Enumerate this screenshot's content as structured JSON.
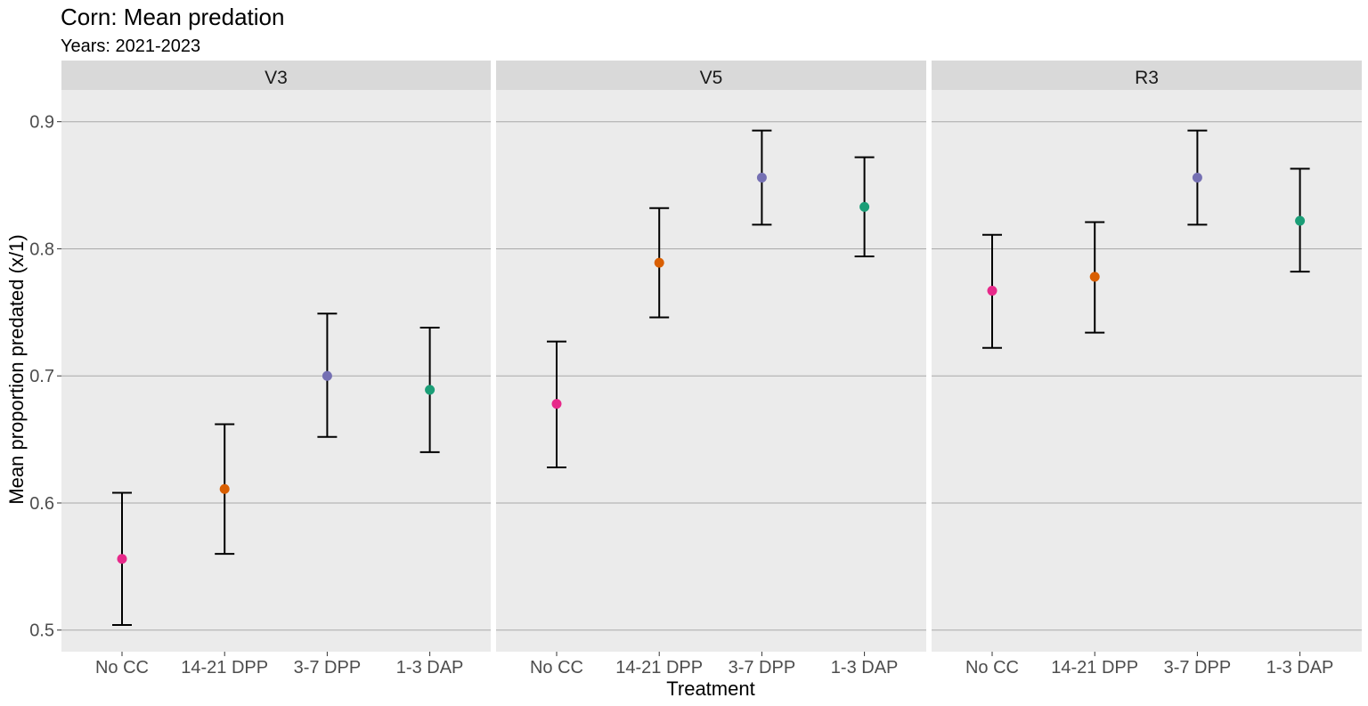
{
  "chart_data": {
    "type": "scatter",
    "title": "Corn: Mean predation",
    "subtitle": "Years: 2021-2023",
    "xlabel": "Treatment",
    "ylabel": "Mean proportion predated (x/1)",
    "ylim": [
      0.483,
      0.925
    ],
    "yticks": [
      "0.5",
      "0.6",
      "0.7",
      "0.8",
      "0.9"
    ],
    "categories": [
      "No CC",
      "14-21 DPP",
      "3-7 DPP",
      "1-3 DAP"
    ],
    "colors": [
      "#e7298a",
      "#d95f02",
      "#7570b3",
      "#1b9e77"
    ],
    "grid": true,
    "legend": "none",
    "panels": [
      {
        "name": "V3",
        "mean": [
          0.556,
          0.611,
          0.7,
          0.689
        ],
        "lower": [
          0.504,
          0.56,
          0.652,
          0.64
        ],
        "upper": [
          0.608,
          0.662,
          0.749,
          0.738
        ]
      },
      {
        "name": "V5",
        "mean": [
          0.678,
          0.789,
          0.856,
          0.833
        ],
        "lower": [
          0.628,
          0.746,
          0.819,
          0.794
        ],
        "upper": [
          0.727,
          0.832,
          0.893,
          0.872
        ]
      },
      {
        "name": "R3",
        "mean": [
          0.767,
          0.778,
          0.856,
          0.822
        ],
        "lower": [
          0.722,
          0.734,
          0.819,
          0.782
        ],
        "upper": [
          0.811,
          0.821,
          0.893,
          0.863
        ]
      }
    ]
  }
}
